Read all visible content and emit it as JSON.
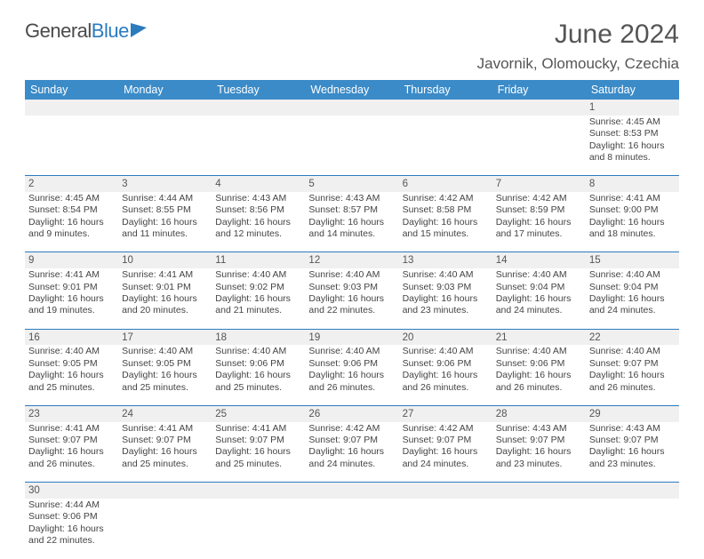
{
  "brand": {
    "part1": "General",
    "part2": "Blue"
  },
  "title": "June 2024",
  "location": "Javornik, Olomoucky, Czechia",
  "colors": {
    "header_bg": "#3b8bc8",
    "header_text": "#ffffff",
    "daynum_bg": "#f0f0f0",
    "rule": "#2b7bbf",
    "body_text": "#444444",
    "title_text": "#555555"
  },
  "day_headers": [
    "Sunday",
    "Monday",
    "Tuesday",
    "Wednesday",
    "Thursday",
    "Friday",
    "Saturday"
  ],
  "weeks": [
    [
      null,
      null,
      null,
      null,
      null,
      null,
      {
        "n": "1",
        "sr": "4:45 AM",
        "ss": "8:53 PM",
        "dl": "16 hours and 8 minutes."
      }
    ],
    [
      {
        "n": "2",
        "sr": "4:45 AM",
        "ss": "8:54 PM",
        "dl": "16 hours and 9 minutes."
      },
      {
        "n": "3",
        "sr": "4:44 AM",
        "ss": "8:55 PM",
        "dl": "16 hours and 11 minutes."
      },
      {
        "n": "4",
        "sr": "4:43 AM",
        "ss": "8:56 PM",
        "dl": "16 hours and 12 minutes."
      },
      {
        "n": "5",
        "sr": "4:43 AM",
        "ss": "8:57 PM",
        "dl": "16 hours and 14 minutes."
      },
      {
        "n": "6",
        "sr": "4:42 AM",
        "ss": "8:58 PM",
        "dl": "16 hours and 15 minutes."
      },
      {
        "n": "7",
        "sr": "4:42 AM",
        "ss": "8:59 PM",
        "dl": "16 hours and 17 minutes."
      },
      {
        "n": "8",
        "sr": "4:41 AM",
        "ss": "9:00 PM",
        "dl": "16 hours and 18 minutes."
      }
    ],
    [
      {
        "n": "9",
        "sr": "4:41 AM",
        "ss": "9:01 PM",
        "dl": "16 hours and 19 minutes."
      },
      {
        "n": "10",
        "sr": "4:41 AM",
        "ss": "9:01 PM",
        "dl": "16 hours and 20 minutes."
      },
      {
        "n": "11",
        "sr": "4:40 AM",
        "ss": "9:02 PM",
        "dl": "16 hours and 21 minutes."
      },
      {
        "n": "12",
        "sr": "4:40 AM",
        "ss": "9:03 PM",
        "dl": "16 hours and 22 minutes."
      },
      {
        "n": "13",
        "sr": "4:40 AM",
        "ss": "9:03 PM",
        "dl": "16 hours and 23 minutes."
      },
      {
        "n": "14",
        "sr": "4:40 AM",
        "ss": "9:04 PM",
        "dl": "16 hours and 24 minutes."
      },
      {
        "n": "15",
        "sr": "4:40 AM",
        "ss": "9:04 PM",
        "dl": "16 hours and 24 minutes."
      }
    ],
    [
      {
        "n": "16",
        "sr": "4:40 AM",
        "ss": "9:05 PM",
        "dl": "16 hours and 25 minutes."
      },
      {
        "n": "17",
        "sr": "4:40 AM",
        "ss": "9:05 PM",
        "dl": "16 hours and 25 minutes."
      },
      {
        "n": "18",
        "sr": "4:40 AM",
        "ss": "9:06 PM",
        "dl": "16 hours and 25 minutes."
      },
      {
        "n": "19",
        "sr": "4:40 AM",
        "ss": "9:06 PM",
        "dl": "16 hours and 26 minutes."
      },
      {
        "n": "20",
        "sr": "4:40 AM",
        "ss": "9:06 PM",
        "dl": "16 hours and 26 minutes."
      },
      {
        "n": "21",
        "sr": "4:40 AM",
        "ss": "9:06 PM",
        "dl": "16 hours and 26 minutes."
      },
      {
        "n": "22",
        "sr": "4:40 AM",
        "ss": "9:07 PM",
        "dl": "16 hours and 26 minutes."
      }
    ],
    [
      {
        "n": "23",
        "sr": "4:41 AM",
        "ss": "9:07 PM",
        "dl": "16 hours and 26 minutes."
      },
      {
        "n": "24",
        "sr": "4:41 AM",
        "ss": "9:07 PM",
        "dl": "16 hours and 25 minutes."
      },
      {
        "n": "25",
        "sr": "4:41 AM",
        "ss": "9:07 PM",
        "dl": "16 hours and 25 minutes."
      },
      {
        "n": "26",
        "sr": "4:42 AM",
        "ss": "9:07 PM",
        "dl": "16 hours and 24 minutes."
      },
      {
        "n": "27",
        "sr": "4:42 AM",
        "ss": "9:07 PM",
        "dl": "16 hours and 24 minutes."
      },
      {
        "n": "28",
        "sr": "4:43 AM",
        "ss": "9:07 PM",
        "dl": "16 hours and 23 minutes."
      },
      {
        "n": "29",
        "sr": "4:43 AM",
        "ss": "9:07 PM",
        "dl": "16 hours and 23 minutes."
      }
    ],
    [
      {
        "n": "30",
        "sr": "4:44 AM",
        "ss": "9:06 PM",
        "dl": "16 hours and 22 minutes."
      },
      null,
      null,
      null,
      null,
      null,
      null
    ]
  ],
  "labels": {
    "sunrise": "Sunrise:",
    "sunset": "Sunset:",
    "daylight": "Daylight:"
  }
}
